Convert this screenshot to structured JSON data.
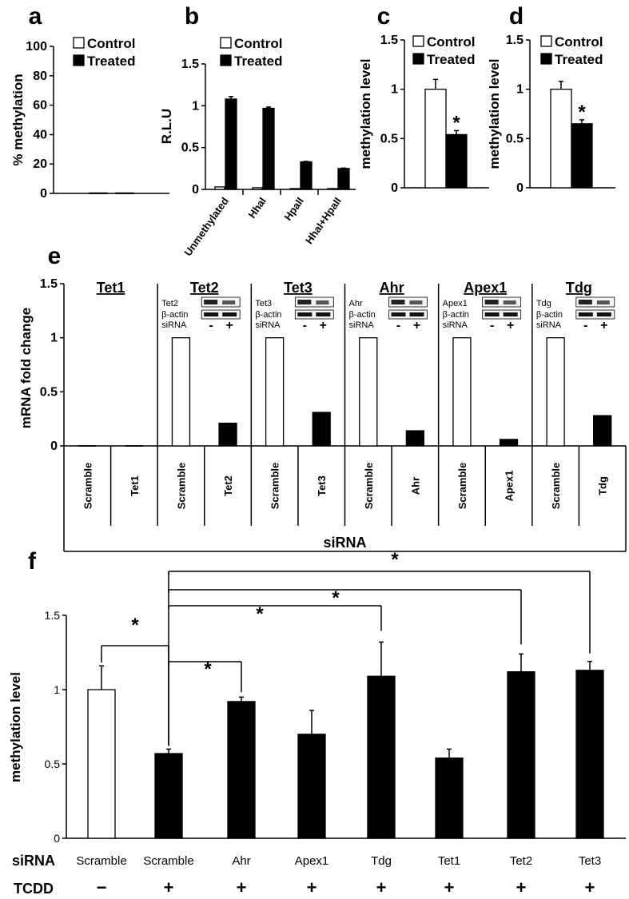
{
  "chart_data": [
    {
      "id": "a",
      "panel": "a",
      "type": "bar",
      "ylabel": "% methylation",
      "ylim": [
        0,
        100
      ],
      "yticks": [
        "0",
        "20",
        "40",
        "60",
        "80",
        "100"
      ],
      "legend": [
        "Control",
        "Treated"
      ],
      "categories": [
        ""
      ],
      "series": [
        {
          "name": "Control",
          "values": [
            0.3
          ]
        },
        {
          "name": "Treated",
          "values": [
            0.3
          ]
        }
      ]
    },
    {
      "id": "b",
      "panel": "b",
      "type": "bar",
      "ylabel": "R.L.U",
      "ylim": [
        0,
        1.5
      ],
      "yticks": [
        "0",
        "0.5",
        "1",
        "1.5"
      ],
      "legend": [
        "Control",
        "Treated"
      ],
      "categories": [
        "Unmethylated",
        "HhaI",
        "HpaII",
        "HhaI+HpaII"
      ],
      "series": [
        {
          "name": "Control",
          "values": [
            0.03,
            0.02,
            0.01,
            0.01
          ]
        },
        {
          "name": "Treated",
          "values": [
            1.08,
            0.97,
            0.33,
            0.25
          ],
          "errors": [
            0.03,
            0.015,
            0.005,
            0.005
          ]
        }
      ]
    },
    {
      "id": "c",
      "panel": "c",
      "type": "bar",
      "ylabel": "methylation level",
      "ylim": [
        0,
        1.5
      ],
      "yticks": [
        "0",
        "0.5",
        "1",
        "1.5"
      ],
      "legend": [
        "Control",
        "Treated"
      ],
      "categories": [
        ""
      ],
      "series": [
        {
          "name": "Control",
          "values": [
            1.0
          ],
          "errors": [
            0.1
          ]
        },
        {
          "name": "Treated",
          "values": [
            0.54
          ],
          "errors": [
            0.04
          ]
        }
      ],
      "annotations": [
        "*"
      ]
    },
    {
      "id": "d",
      "panel": "d",
      "type": "bar",
      "ylabel": "methylation level",
      "ylim": [
        0,
        1.5
      ],
      "yticks": [
        "0",
        "0.5",
        "1",
        "1.5"
      ],
      "legend": [
        "Control",
        "Treated"
      ],
      "categories": [
        ""
      ],
      "series": [
        {
          "name": "Control",
          "values": [
            1.0
          ],
          "errors": [
            0.08
          ]
        },
        {
          "name": "Treated",
          "values": [
            0.65
          ],
          "errors": [
            0.04
          ]
        }
      ],
      "annotations": [
        "*"
      ]
    },
    {
      "id": "e",
      "panel": "e",
      "type": "bar",
      "ylabel": "mRNA fold change",
      "xlabel": "siRNA",
      "ylim": [
        0,
        1.5
      ],
      "yticks": [
        "0",
        "0.5",
        "1",
        "1.5"
      ],
      "groups": [
        {
          "title": "Tet1",
          "categories": [
            "Scramble",
            "Tet1"
          ],
          "values": [
            0.0,
            0.0
          ],
          "fills": [
            "white",
            "black"
          ],
          "blot": null
        },
        {
          "title": "Tet2",
          "categories": [
            "Scramble",
            "Tet2"
          ],
          "values": [
            1.0,
            0.21
          ],
          "fills": [
            "white",
            "black"
          ],
          "blot": {
            "labels": [
              "Tet2",
              "β-actin",
              "siRNA"
            ],
            "signs": [
              "-",
              "+"
            ]
          }
        },
        {
          "title": "Tet3",
          "categories": [
            "Scramble",
            "Tet3"
          ],
          "values": [
            1.0,
            0.31
          ],
          "fills": [
            "white",
            "black"
          ],
          "blot": {
            "labels": [
              "Tet3",
              "β-actin",
              "siRNA"
            ],
            "signs": [
              "-",
              "+"
            ]
          }
        },
        {
          "title": "Ahr",
          "categories": [
            "Scramble",
            "Ahr"
          ],
          "values": [
            1.0,
            0.14
          ],
          "fills": [
            "white",
            "black"
          ],
          "blot": {
            "labels": [
              "Ahr",
              "β-actin",
              "siRNA"
            ],
            "signs": [
              "-",
              "+"
            ]
          }
        },
        {
          "title": "Apex1",
          "categories": [
            "Scramble",
            "Apex1"
          ],
          "values": [
            1.0,
            0.06
          ],
          "fills": [
            "white",
            "black"
          ],
          "blot": {
            "labels": [
              "Apex1",
              "β-actin",
              "siRNA"
            ],
            "signs": [
              "-",
              "+"
            ]
          }
        },
        {
          "title": "Tdg",
          "categories": [
            "Scramble",
            "Tdg"
          ],
          "values": [
            1.0,
            0.28
          ],
          "fills": [
            "white",
            "black"
          ],
          "blot": {
            "labels": [
              "Tdg",
              "β-actin",
              "siRNA"
            ],
            "signs": [
              "-",
              "+"
            ]
          }
        }
      ]
    },
    {
      "id": "f",
      "panel": "f",
      "type": "bar",
      "ylabel": "methylation level",
      "ylim": [
        0,
        1.5
      ],
      "yticks": [
        "0",
        "0.5",
        "1",
        "1.5"
      ],
      "row_labels": [
        "siRNA",
        "TCDD"
      ],
      "categories": [
        "Scramble",
        "Scramble",
        "Ahr",
        "Apex1",
        "Tdg",
        "Tet1",
        "Tet2",
        "Tet3"
      ],
      "tcdd": [
        "−",
        "+",
        "+",
        "+",
        "+",
        "+",
        "+",
        "+"
      ],
      "values": [
        1.0,
        0.57,
        0.92,
        0.7,
        1.09,
        0.54,
        1.12,
        1.13
      ],
      "errors": [
        0.16,
        0.03,
        0.03,
        0.16,
        0.23,
        0.06,
        0.12,
        0.06
      ],
      "fills": [
        "white",
        "black",
        "black",
        "black",
        "black",
        "black",
        "black",
        "black"
      ],
      "comparisons": [
        {
          "from": 0,
          "to": 1,
          "label": "*"
        },
        {
          "from": 1,
          "to": 2,
          "label": "*"
        },
        {
          "from": 1,
          "to": 4,
          "label": "*"
        },
        {
          "from": 1,
          "to": 6,
          "label": "*"
        },
        {
          "from": 1,
          "to": 7,
          "label": "*"
        }
      ]
    }
  ]
}
